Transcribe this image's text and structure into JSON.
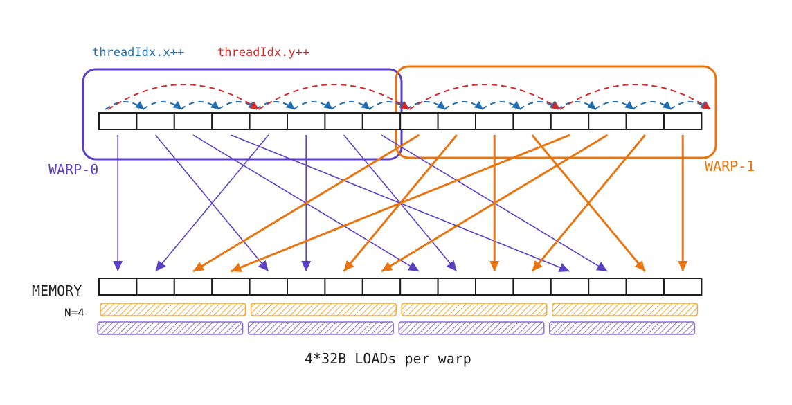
{
  "labels": {
    "thread_x": "threadIdx.x++",
    "thread_y": "threadIdx.y++",
    "warp0": "WARP-0",
    "warp1": "WARP-1",
    "memory": "MEMORY",
    "n": "N=4",
    "caption": "4*32B LOADs per warp"
  },
  "colors": {
    "purple": "#5b3fc4",
    "orange": "#e8750f",
    "blue": "#1f6fb5",
    "red": "#d12a2a",
    "cell_stroke": "#1e1e1e",
    "load_orange": "#f0a93a",
    "load_purple": "#8a6fd6"
  },
  "threads": {
    "count": 16,
    "warp0": [
      0,
      7
    ],
    "warp1": [
      8,
      15
    ]
  },
  "memory": {
    "count": 16,
    "loads_per_warp": 4
  },
  "mapping": [
    {
      "thread": 0,
      "mem": 0,
      "warp": 0
    },
    {
      "thread": 1,
      "mem": 4,
      "warp": 0
    },
    {
      "thread": 2,
      "mem": 8,
      "warp": 0
    },
    {
      "thread": 3,
      "mem": 12,
      "warp": 0
    },
    {
      "thread": 4,
      "mem": 1,
      "warp": 0
    },
    {
      "thread": 5,
      "mem": 5,
      "warp": 0
    },
    {
      "thread": 6,
      "mem": 9,
      "warp": 0
    },
    {
      "thread": 7,
      "mem": 13,
      "warp": 0
    },
    {
      "thread": 8,
      "mem": 2,
      "warp": 1
    },
    {
      "thread": 9,
      "mem": 6,
      "warp": 1
    },
    {
      "thread": 10,
      "mem": 10,
      "warp": 1
    },
    {
      "thread": 11,
      "mem": 14,
      "warp": 1
    },
    {
      "thread": 12,
      "mem": 3,
      "warp": 1
    },
    {
      "thread": 13,
      "mem": 7,
      "warp": 1
    },
    {
      "thread": 14,
      "mem": 11,
      "warp": 1
    },
    {
      "thread": 15,
      "mem": 15,
      "warp": 1
    }
  ]
}
